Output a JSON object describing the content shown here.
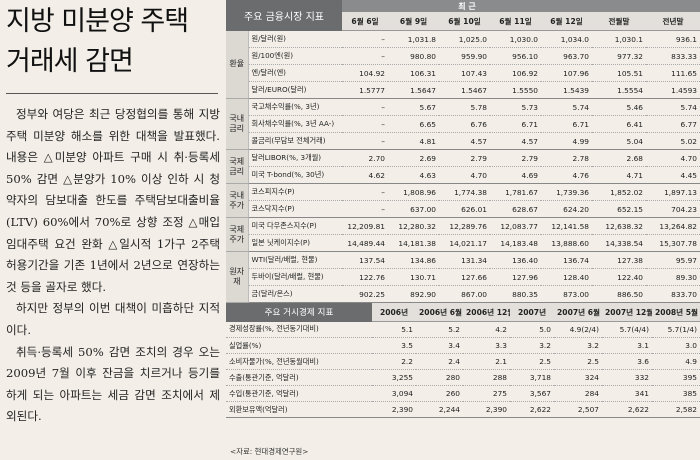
{
  "article": {
    "headline_line1": "지방 미분양 주택",
    "headline_line2": "거래세 감면",
    "paragraphs": [
      "정부와 여당은 최근 당정협의를 통해 지방 주택 미분양 해소를 위한 대책을 발표했다. 내용은 △미분양 아파트 구매 시 취·등록세 50% 감면 △분양가 10% 이상 인하 시 청약자의 담보대출 한도를 주택담보대출비율(LTV) 60%에서 70%로 상향 조정 △매입 임대주택 요건 완화 △일시적 1가구 2주택 허용기간을 기존 1년에서 2년으로 연장하는 것 등을 골자로 했다.",
      "하지만 정부의 이번 대책이 미흡하단 지적이다.",
      "취득·등록세 50% 감면 조치의 경우 오는 2009년 7월 이후 잔금을 치르거나 등기를 하게 되는 아파트는 세금 감면 조치에서 제외된다."
    ]
  },
  "market": {
    "title": "주요 금융시장 지표",
    "recent_label": "최 근",
    "columns": [
      "6월 6일",
      "6월 9일",
      "6월 10일",
      "6월 11일",
      "6월 12일",
      "전월말",
      "전년말"
    ],
    "groups": [
      {
        "name": "환율",
        "rows": [
          {
            "label": "원/달러(원)",
            "values": [
              "–",
              "1,031.8",
              "1,025.0",
              "1,030.0",
              "1,034.0",
              "1,030.1",
              "936.1"
            ]
          },
          {
            "label": "원/100엔(원)",
            "values": [
              "–",
              "980.80",
              "959.90",
              "956.10",
              "963.70",
              "977.32",
              "833.33"
            ]
          },
          {
            "label": "엔/달러(엔)",
            "values": [
              "104.92",
              "106.31",
              "107.43",
              "106.92",
              "107.96",
              "105.51",
              "111.65"
            ]
          },
          {
            "label": "달러/EURO(달러)",
            "values": [
              "1.5777",
              "1.5647",
              "1.5467",
              "1.5550",
              "1.5439",
              "1.5554",
              "1.4593"
            ]
          }
        ]
      },
      {
        "name": "국내 금리",
        "rows": [
          {
            "label": "국고채수익률(%, 3년)",
            "values": [
              "–",
              "5.67",
              "5.78",
              "5.73",
              "5.74",
              "5.46",
              "5.74"
            ]
          },
          {
            "label": "회사채수익률(%, 3년 AA-)",
            "values": [
              "–",
              "6.65",
              "6.76",
              "6.71",
              "6.71",
              "6.41",
              "6.77"
            ]
          },
          {
            "label": "콜금리(무담보 전체거래)",
            "values": [
              "–",
              "4.81",
              "4.57",
              "4.57",
              "4.99",
              "5.04",
              "5.02"
            ]
          }
        ]
      },
      {
        "name": "국제 금리",
        "rows": [
          {
            "label": "달러LIBOR(%, 3개월)",
            "values": [
              "2.70",
              "2.69",
              "2.79",
              "2.79",
              "2.78",
              "2.68",
              "4.70"
            ]
          },
          {
            "label": "미국 T-bond(%, 30년)",
            "values": [
              "4.62",
              "4.63",
              "4.70",
              "4.69",
              "4.76",
              "4.71",
              "4.45"
            ]
          }
        ]
      },
      {
        "name": "국내 주가",
        "rows": [
          {
            "label": "코스피지수(P)",
            "values": [
              "–",
              "1,808.96",
              "1,774.38",
              "1,781.67",
              "1,739.36",
              "1,852.02",
              "1,897.13"
            ]
          },
          {
            "label": "코스닥지수(P)",
            "values": [
              "–",
              "637.00",
              "626.01",
              "628.67",
              "624.20",
              "652.15",
              "704.23"
            ]
          }
        ]
      },
      {
        "name": "국제 주가",
        "rows": [
          {
            "label": "미국 다우존스지수(P)",
            "values": [
              "12,209.81",
              "12,280.32",
              "12,289.76",
              "12,083.77",
              "12,141.58",
              "12,638.32",
              "13,264.82"
            ]
          },
          {
            "label": "일본 닛케이지수(P)",
            "values": [
              "14,489.44",
              "14,181.38",
              "14,021.17",
              "14,183.48",
              "13,888.60",
              "14,338.54",
              "15,307.78"
            ]
          }
        ]
      },
      {
        "name": "원자재",
        "rows": [
          {
            "label": "WTI(달러/배럴, 현물)",
            "values": [
              "137.54",
              "134.86",
              "131.34",
              "136.40",
              "136.74",
              "127.38",
              "95.97"
            ]
          },
          {
            "label": "두바이(달러/배럴, 현물)",
            "values": [
              "122.76",
              "130.71",
              "127.66",
              "127.96",
              "128.40",
              "122.40",
              "89.30"
            ]
          },
          {
            "label": "금(달러/온스)",
            "values": [
              "902.25",
              "892.90",
              "867.00",
              "880.35",
              "873.00",
              "886.50",
              "833.70"
            ]
          }
        ]
      }
    ]
  },
  "economy": {
    "title": "주요 거시경제 지표",
    "columns": [
      "2006년",
      "2006년 6월",
      "2006년 12월",
      "2007년",
      "2007년 6월",
      "2007년 12월",
      "2008년 5월"
    ],
    "rows": [
      {
        "label": "경제성장률(%, 전년동기대비)",
        "values": [
          "5.1",
          "5.2",
          "4.2",
          "5.0",
          "4.9(2/4)",
          "5.7(4/4)",
          "5.7(1/4)"
        ]
      },
      {
        "label": "실업률(%)",
        "values": [
          "3.5",
          "3.4",
          "3.3",
          "3.2",
          "3.2",
          "3.1",
          "3.0"
        ]
      },
      {
        "label": "소비자물가(%, 전년동월대비)",
        "values": [
          "2.2",
          "2.4",
          "2.1",
          "2.5",
          "2.5",
          "3.6",
          "4.9"
        ]
      },
      {
        "label": "수출(통관기준, 억달러)",
        "values": [
          "3,255",
          "280",
          "288",
          "3,718",
          "324",
          "332",
          "395"
        ]
      },
      {
        "label": "수입(통관기준, 억달러)",
        "values": [
          "3,094",
          "260",
          "275",
          "3,567",
          "284",
          "341",
          "385"
        ]
      },
      {
        "label": "외환보유액(억달러)",
        "values": [
          "2,390",
          "2,244",
          "2,390",
          "2,622",
          "2,507",
          "2,622",
          "2,582"
        ]
      }
    ]
  },
  "source": "<자료: 현대경제연구원>"
}
